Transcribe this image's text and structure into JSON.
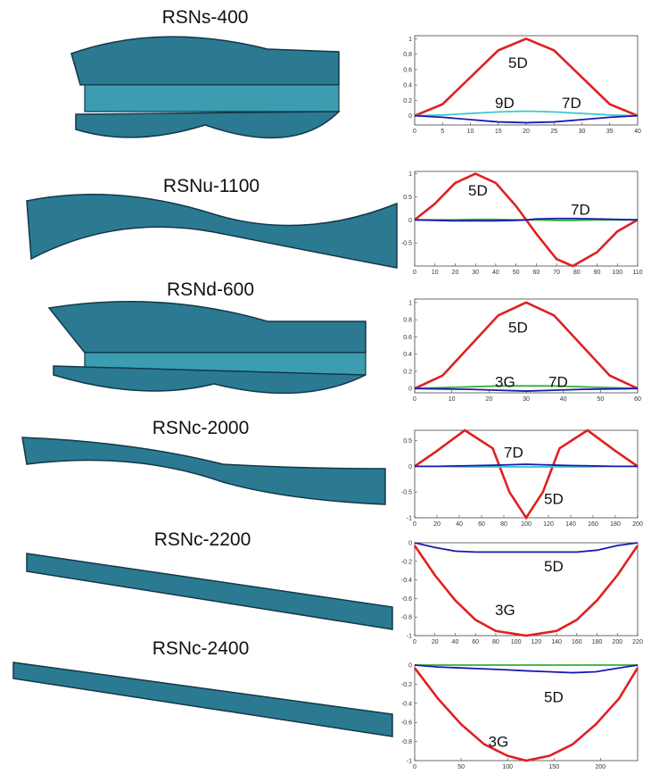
{
  "members": [
    "RSNs-400",
    "RSNu-1100",
    "RSNd-600",
    "RSNc-2000",
    "RSNc-2200",
    "RSNc-2400"
  ],
  "chart_data": [
    {
      "type": "line",
      "x": [
        0,
        5,
        10,
        15,
        20,
        25,
        30,
        35,
        40
      ],
      "xlim": [
        0,
        40
      ],
      "xticks": [
        0,
        5,
        10,
        15,
        20,
        25,
        30,
        35,
        40
      ],
      "ylim": [
        -0.12,
        1.04
      ],
      "yticks": [
        0,
        0.2,
        0.4,
        0.6,
        0.8,
        1
      ],
      "series": [
        {
          "color": "#e02020",
          "values": [
            0,
            0.15,
            0.5,
            0.85,
            1,
            0.85,
            0.5,
            0.15,
            0
          ]
        },
        {
          "color": "#40c8c8",
          "values": [
            0,
            0.01,
            0.03,
            0.05,
            0.06,
            0.05,
            0.03,
            0.01,
            0
          ]
        },
        {
          "color": "#1a1ab0",
          "values": [
            0,
            -0.02,
            -0.05,
            -0.08,
            -0.09,
            -0.08,
            -0.05,
            -0.02,
            0
          ]
        }
      ],
      "annotations": [
        {
          "text": "5D"
        },
        {
          "text": "9D"
        },
        {
          "text": "7D"
        }
      ]
    },
    {
      "type": "line",
      "x": [
        0,
        10,
        20,
        30,
        40,
        50,
        55,
        60,
        70,
        78,
        90,
        100,
        110
      ],
      "xlim": [
        0,
        110
      ],
      "xticks": [
        0,
        10,
        20,
        30,
        40,
        50,
        60,
        70,
        80,
        90,
        100,
        110
      ],
      "ylim": [
        -1,
        1.05
      ],
      "yticks": [
        -0.5,
        0,
        0.5,
        1
      ],
      "series": [
        {
          "color": "#e02020",
          "values": [
            0,
            0.35,
            0.8,
            1,
            0.8,
            0.3,
            0,
            -0.3,
            -0.85,
            -1,
            -0.7,
            -0.25,
            0
          ]
        },
        {
          "color": "#30b030",
          "values": [
            0,
            0,
            0,
            0.01,
            0.01,
            0,
            0,
            0,
            -0.01,
            -0.01,
            0,
            0,
            0
          ]
        },
        {
          "color": "#1a1ab0",
          "values": [
            0,
            -0.01,
            -0.02,
            -0.02,
            -0.02,
            -0.01,
            0,
            0.02,
            0.03,
            0.03,
            0.02,
            0.01,
            0
          ]
        }
      ],
      "annotations": [
        {
          "text": "5D"
        },
        {
          "text": "7D"
        }
      ]
    },
    {
      "type": "line",
      "x": [
        0,
        7.5,
        15,
        22.5,
        30,
        37.5,
        45,
        52.5,
        60
      ],
      "xlim": [
        0,
        60
      ],
      "xticks": [
        0,
        10,
        20,
        30,
        40,
        50,
        60
      ],
      "ylim": [
        -0.05,
        1.04
      ],
      "yticks": [
        0,
        0.2,
        0.4,
        0.6,
        0.8,
        1
      ],
      "series": [
        {
          "color": "#e02020",
          "values": [
            0,
            0.15,
            0.5,
            0.85,
            1,
            0.85,
            0.5,
            0.15,
            0
          ]
        },
        {
          "color": "#30b030",
          "values": [
            0,
            0.01,
            0.02,
            0.03,
            0.03,
            0.03,
            0.02,
            0.01,
            0
          ]
        },
        {
          "color": "#1a1ab0",
          "values": [
            0,
            -0.005,
            -0.01,
            -0.02,
            -0.03,
            -0.02,
            -0.01,
            -0.005,
            0
          ]
        }
      ],
      "annotations": [
        {
          "text": "5D"
        },
        {
          "text": "3G"
        },
        {
          "text": "7D"
        }
      ]
    },
    {
      "type": "line",
      "x": [
        0,
        20,
        45,
        70,
        85,
        100,
        115,
        130,
        155,
        180,
        200
      ],
      "xlim": [
        0,
        200
      ],
      "xticks": [
        0,
        20,
        40,
        60,
        80,
        100,
        120,
        140,
        160,
        180,
        200
      ],
      "ylim": [
        -1,
        0.7
      ],
      "yticks": [
        -1,
        -0.5,
        0,
        0.5
      ],
      "series": [
        {
          "color": "#e02020",
          "values": [
            0,
            0.3,
            0.7,
            0.35,
            -0.5,
            -1,
            -0.5,
            0.35,
            0.7,
            0.3,
            0
          ]
        },
        {
          "color": "#40c8c8",
          "values": [
            0,
            0,
            -0.01,
            -0.01,
            -0.01,
            -0.01,
            -0.01,
            -0.01,
            -0.01,
            0,
            0
          ]
        },
        {
          "color": "#1a1ab0",
          "values": [
            0,
            0,
            0.01,
            0.02,
            0.03,
            0.04,
            0.03,
            0.02,
            0.01,
            0,
            0
          ]
        }
      ],
      "annotations": [
        {
          "text": "7D"
        },
        {
          "text": "5D"
        }
      ]
    },
    {
      "type": "line",
      "x": [
        0,
        20,
        40,
        60,
        80,
        110,
        140,
        160,
        180,
        200,
        220
      ],
      "xlim": [
        0,
        220
      ],
      "xticks": [
        0,
        20,
        40,
        60,
        80,
        100,
        120,
        140,
        160,
        180,
        200,
        220
      ],
      "ylim": [
        -1,
        0
      ],
      "yticks": [
        -1,
        -0.8,
        -0.6,
        -0.4,
        -0.2,
        0
      ],
      "series": [
        {
          "color": "#e02020",
          "values": [
            -0.03,
            -0.35,
            -0.62,
            -0.83,
            -0.95,
            -1,
            -0.95,
            -0.83,
            -0.62,
            -0.35,
            -0.03
          ]
        },
        {
          "color": "#1a1ab0",
          "values": [
            0,
            -0.05,
            -0.09,
            -0.1,
            -0.1,
            -0.1,
            -0.1,
            -0.1,
            -0.08,
            -0.03,
            0
          ]
        }
      ],
      "annotations": [
        {
          "text": "5D"
        },
        {
          "text": "3G"
        }
      ]
    },
    {
      "type": "line",
      "x": [
        0,
        25,
        50,
        75,
        100,
        120,
        145,
        170,
        195,
        220,
        240
      ],
      "xlim": [
        0,
        240
      ],
      "xticks": [
        0,
        50,
        100,
        150,
        200
      ],
      "ylim": [
        -1,
        0
      ],
      "yticks": [
        -1,
        -0.8,
        -0.6,
        -0.4,
        -0.2,
        0
      ],
      "series": [
        {
          "color": "#e02020",
          "values": [
            -0.03,
            -0.35,
            -0.62,
            -0.83,
            -0.95,
            -1,
            -0.95,
            -0.83,
            -0.62,
            -0.35,
            -0.03
          ]
        },
        {
          "color": "#30b030",
          "values": [
            0,
            0,
            0,
            0,
            0,
            0,
            0,
            0,
            0,
            0,
            0
          ]
        },
        {
          "color": "#1a1ab0",
          "values": [
            0,
            -0.02,
            -0.03,
            -0.04,
            -0.05,
            -0.06,
            -0.07,
            -0.08,
            -0.07,
            -0.03,
            0
          ]
        }
      ],
      "annotations": [
        {
          "text": "5D"
        },
        {
          "text": "3G"
        }
      ]
    }
  ]
}
